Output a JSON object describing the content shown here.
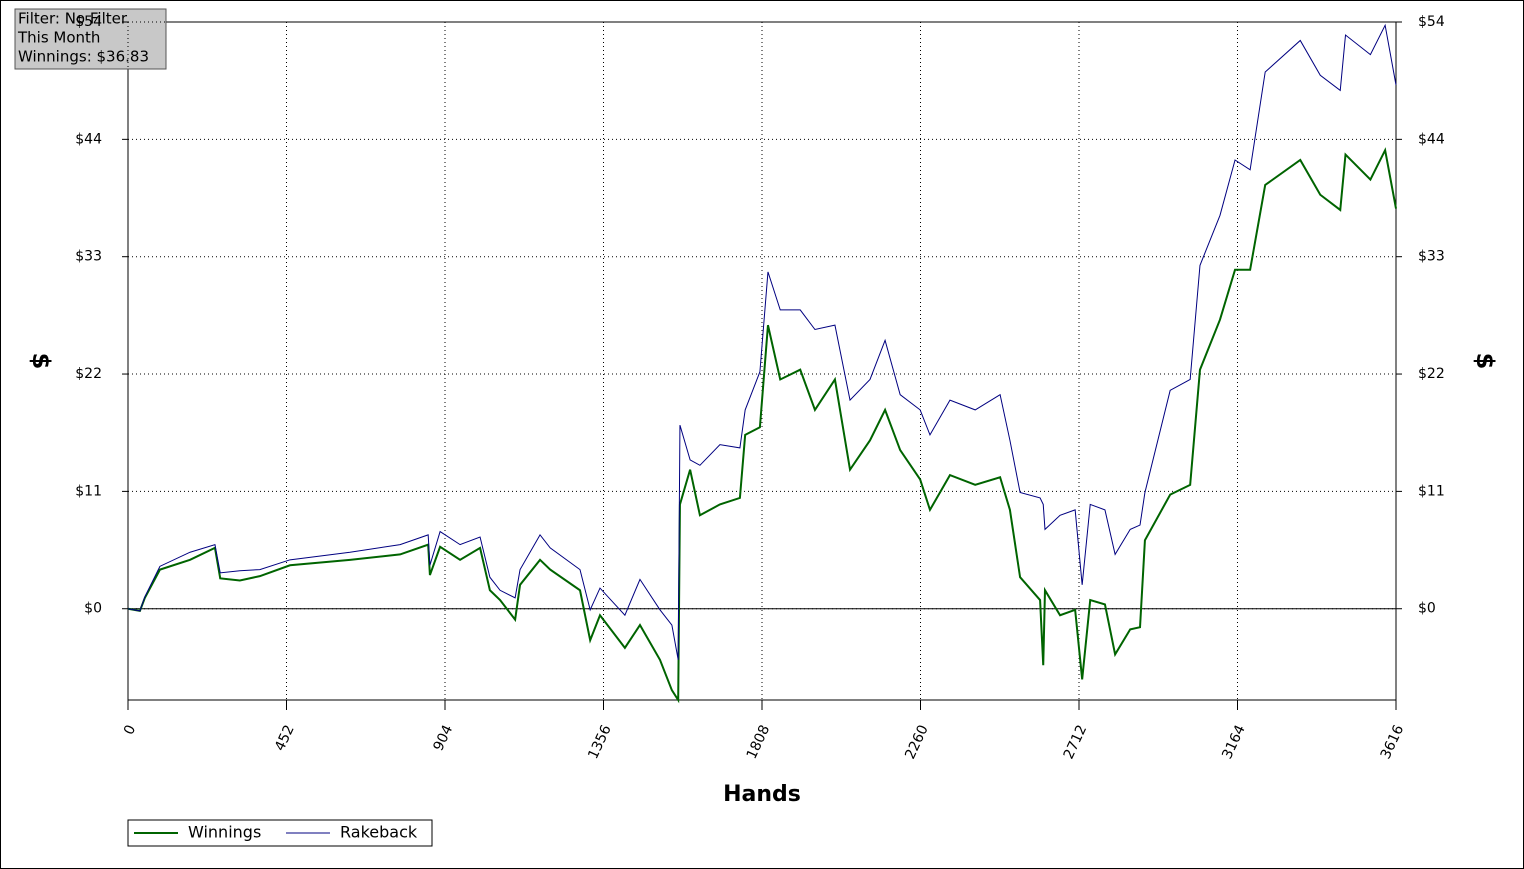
{
  "chart_data": {
    "type": "line",
    "annotation": [
      "Filter: No Filter",
      "This Month",
      "Winnings: $36.83"
    ],
    "xlabel": "Hands",
    "ylabel": "$",
    "x": [
      0,
      34,
      48,
      91,
      177,
      248,
      263,
      319,
      376,
      462,
      633,
      776,
      856,
      861,
      890,
      947,
      1004,
      1032,
      1061,
      1104,
      1118,
      1175,
      1204,
      1289,
      1318,
      1346,
      1417,
      1460,
      1517,
      1551,
      1569,
      1574,
      1603,
      1631,
      1688,
      1745,
      1760,
      1802,
      1825,
      1860,
      1917,
      1959,
      2016,
      2059,
      2116,
      2159,
      2202,
      2259,
      2287,
      2344,
      2416,
      2487,
      2515,
      2544,
      2601,
      2610,
      2615,
      2658,
      2701,
      2721,
      2744,
      2786,
      2815,
      2858,
      2886,
      2900,
      2972,
      3029,
      3057,
      3114,
      3157,
      3200,
      3243,
      3343,
      3400,
      3457,
      3472,
      3543,
      3585,
      3616
    ],
    "series": [
      {
        "name": "Winnings",
        "color": "#006400",
        "values": [
          0,
          -0.2,
          1.0,
          3.6,
          4.5,
          5.6,
          2.8,
          2.6,
          3.0,
          4.0,
          4.5,
          5.0,
          5.9,
          3.1,
          5.7,
          4.5,
          5.6,
          1.7,
          0.8,
          -1.0,
          2.2,
          4.5,
          3.6,
          1.7,
          -2.9,
          -0.6,
          -3.6,
          -1.5,
          -4.7,
          -7.5,
          -8.4,
          9.6,
          12.8,
          8.6,
          9.6,
          10.2,
          16.0,
          16.7,
          26.1,
          21.1,
          22.0,
          18.3,
          21.1,
          12.8,
          15.5,
          18.3,
          14.6,
          11.9,
          9.1,
          12.3,
          11.4,
          12.1,
          9.1,
          2.9,
          0.8,
          -5.2,
          1.7,
          -0.6,
          -0.1,
          -6.5,
          0.8,
          0.4,
          -4.2,
          -1.9,
          -1.7,
          6.3,
          10.5,
          11.4,
          22.0,
          26.6,
          31.2,
          31.2,
          39.0,
          41.3,
          38.1,
          36.7,
          41.8,
          39.5,
          42.2,
          36.83
        ]
      },
      {
        "name": "Rakeback",
        "color": "#000080",
        "values": [
          0,
          -0.2,
          1.1,
          3.9,
          5.2,
          5.9,
          3.3,
          3.5,
          3.6,
          4.5,
          5.2,
          5.9,
          6.8,
          4.0,
          7.1,
          5.9,
          6.6,
          2.9,
          1.7,
          1.0,
          3.6,
          6.8,
          5.6,
          3.6,
          -0.1,
          1.9,
          -0.6,
          2.7,
          -0.1,
          -1.5,
          -4.7,
          16.9,
          13.7,
          13.2,
          15.1,
          14.8,
          18.3,
          21.8,
          31.0,
          27.5,
          27.5,
          25.7,
          26.1,
          19.2,
          21.1,
          24.7,
          19.7,
          18.3,
          16.0,
          19.2,
          18.3,
          19.7,
          15.5,
          10.7,
          10.2,
          9.6,
          7.3,
          8.6,
          9.1,
          2.2,
          9.6,
          9.1,
          5.0,
          7.3,
          7.7,
          10.7,
          20.1,
          21.1,
          31.6,
          36.2,
          41.3,
          40.4,
          49.4,
          52.3,
          49.1,
          47.7,
          52.8,
          51.0,
          53.7,
          48.2
        ]
      }
    ],
    "xlim": [
      0,
      3616
    ],
    "xticks": [
      0,
      452,
      904,
      1356,
      1808,
      2260,
      2712,
      3164,
      3616
    ],
    "ylim": [
      -8.4,
      54
    ],
    "yticks": [
      {
        "value": 0,
        "label": "$0"
      },
      {
        "value": 10.8,
        "label": "$11"
      },
      {
        "value": 21.6,
        "label": "$22"
      },
      {
        "value": 32.4,
        "label": "$33"
      },
      {
        "value": 43.2,
        "label": "$44"
      },
      {
        "value": 54,
        "label": "$54"
      }
    ],
    "grid": true
  }
}
